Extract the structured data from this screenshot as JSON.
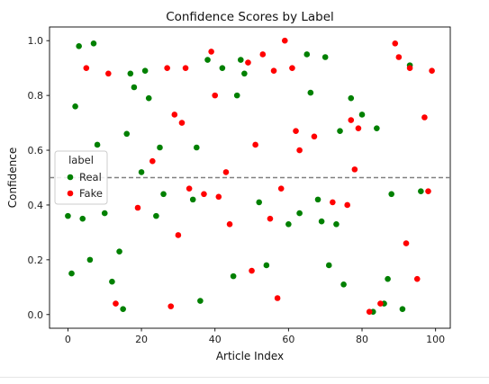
{
  "chart_data": {
    "type": "scatter",
    "title": "Confidence Scores by Label",
    "xlabel": "Article Index",
    "ylabel": "Confidence",
    "xlim": [
      -5,
      104
    ],
    "ylim": [
      -0.05,
      1.05
    ],
    "x_ticks": [
      0,
      20,
      40,
      60,
      80,
      100
    ],
    "y_ticks": [
      0.0,
      0.2,
      0.4,
      0.6,
      0.8,
      1.0
    ],
    "x_tick_labels": [
      "0",
      "20",
      "40",
      "60",
      "80",
      "100"
    ],
    "y_tick_labels": [
      "0.0",
      "0.2",
      "0.4",
      "0.6",
      "0.8",
      "1.0"
    ],
    "threshold": 0.5,
    "grid": false,
    "legend": {
      "title": "label",
      "position": "center-left"
    },
    "series": [
      {
        "name": "Real",
        "color": "#008000",
        "points": [
          [
            0,
            0.36
          ],
          [
            1,
            0.15
          ],
          [
            2,
            0.76
          ],
          [
            3,
            0.98
          ],
          [
            4,
            0.35
          ],
          [
            6,
            0.2
          ],
          [
            7,
            0.99
          ],
          [
            8,
            0.62
          ],
          [
            10,
            0.37
          ],
          [
            12,
            0.12
          ],
          [
            14,
            0.23
          ],
          [
            15,
            0.02
          ],
          [
            16,
            0.66
          ],
          [
            17,
            0.88
          ],
          [
            18,
            0.83
          ],
          [
            20,
            0.52
          ],
          [
            21,
            0.89
          ],
          [
            22,
            0.79
          ],
          [
            24,
            0.36
          ],
          [
            25,
            0.61
          ],
          [
            26,
            0.44
          ],
          [
            34,
            0.42
          ],
          [
            35,
            0.61
          ],
          [
            36,
            0.05
          ],
          [
            38,
            0.93
          ],
          [
            42,
            0.9
          ],
          [
            45,
            0.14
          ],
          [
            46,
            0.8
          ],
          [
            47,
            0.93
          ],
          [
            48,
            0.88
          ],
          [
            52,
            0.41
          ],
          [
            54,
            0.18
          ],
          [
            60,
            0.33
          ],
          [
            63,
            0.37
          ],
          [
            65,
            0.95
          ],
          [
            66,
            0.81
          ],
          [
            68,
            0.42
          ],
          [
            69,
            0.34
          ],
          [
            70,
            0.94
          ],
          [
            71,
            0.18
          ],
          [
            73,
            0.33
          ],
          [
            74,
            0.67
          ],
          [
            75,
            0.11
          ],
          [
            77,
            0.79
          ],
          [
            80,
            0.73
          ],
          [
            83,
            0.01
          ],
          [
            84,
            0.68
          ],
          [
            86,
            0.04
          ],
          [
            87,
            0.13
          ],
          [
            88,
            0.44
          ],
          [
            91,
            0.02
          ],
          [
            93,
            0.91
          ],
          [
            96,
            0.45
          ]
        ]
      },
      {
        "name": "Fake",
        "color": "#ff0000",
        "points": [
          [
            5,
            0.9
          ],
          [
            11,
            0.88
          ],
          [
            13,
            0.04
          ],
          [
            19,
            0.39
          ],
          [
            23,
            0.56
          ],
          [
            27,
            0.9
          ],
          [
            28,
            0.03
          ],
          [
            29,
            0.73
          ],
          [
            30,
            0.29
          ],
          [
            31,
            0.7
          ],
          [
            32,
            0.9
          ],
          [
            33,
            0.46
          ],
          [
            37,
            0.44
          ],
          [
            39,
            0.96
          ],
          [
            40,
            0.8
          ],
          [
            41,
            0.43
          ],
          [
            43,
            0.52
          ],
          [
            44,
            0.33
          ],
          [
            49,
            0.92
          ],
          [
            50,
            0.16
          ],
          [
            51,
            0.62
          ],
          [
            53,
            0.95
          ],
          [
            55,
            0.35
          ],
          [
            56,
            0.89
          ],
          [
            57,
            0.06
          ],
          [
            58,
            0.46
          ],
          [
            59,
            1.0
          ],
          [
            61,
            0.9
          ],
          [
            62,
            0.67
          ],
          [
            63,
            0.6
          ],
          [
            67,
            0.65
          ],
          [
            72,
            0.41
          ],
          [
            76,
            0.4
          ],
          [
            77,
            0.71
          ],
          [
            78,
            0.53
          ],
          [
            79,
            0.68
          ],
          [
            82,
            0.01
          ],
          [
            85,
            0.04
          ],
          [
            89,
            0.99
          ],
          [
            90,
            0.94
          ],
          [
            92,
            0.26
          ],
          [
            93,
            0.9
          ],
          [
            95,
            0.13
          ],
          [
            97,
            0.72
          ],
          [
            98,
            0.45
          ],
          [
            99,
            0.89
          ]
        ]
      }
    ]
  }
}
